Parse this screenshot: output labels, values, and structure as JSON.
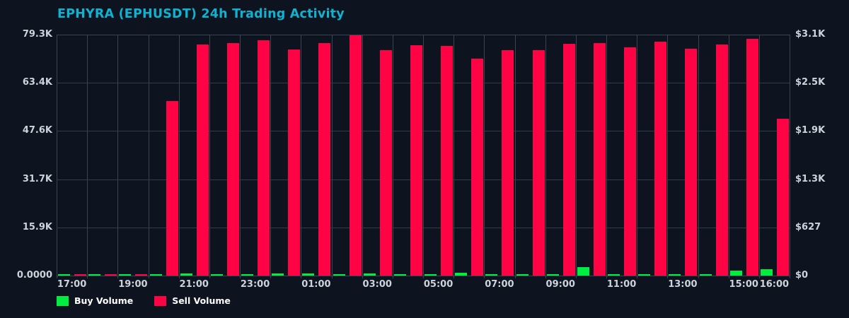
{
  "title": "EPHYRA (EPHUSDT) 24h Trading Activity",
  "colors": {
    "background": "#0d141f",
    "grid": "#3a4450",
    "buy": "#00ee3f",
    "sell": "#ff0345",
    "title": "#10b2d0",
    "axis_text": "#cdd3da"
  },
  "legend": {
    "buy_label": "Buy Volume",
    "sell_label": "Sell Volume"
  },
  "chart_data": {
    "type": "bar",
    "title": "EPHYRA (EPHUSDT) 24h Trading Activity",
    "grid": true,
    "legend_position": "bottom-left",
    "categories": [
      "17:00",
      "18:00",
      "19:00",
      "20:00",
      "21:00",
      "22:00",
      "23:00",
      "00:00",
      "01:00",
      "02:00",
      "03:00",
      "04:00",
      "05:00",
      "06:00",
      "07:00",
      "08:00",
      "09:00",
      "10:00",
      "11:00",
      "12:00",
      "13:00",
      "14:00",
      "15:00",
      "16:00"
    ],
    "series": [
      {
        "name": "Buy Volume",
        "color": "#00ee3f",
        "values": [
          300,
          300,
          320,
          300,
          780,
          150,
          400,
          700,
          620,
          300,
          620,
          300,
          460,
          930,
          160,
          400,
          540,
          2860,
          200,
          250,
          250,
          250,
          1700,
          2160
        ]
      },
      {
        "name": "Sell Volume",
        "color": "#ff0345",
        "values": [
          250,
          200,
          230,
          57400,
          76100,
          76600,
          77500,
          74400,
          76600,
          79100,
          74300,
          75800,
          75700,
          71500,
          74100,
          74300,
          76300,
          76600,
          75100,
          76900,
          74600,
          76100,
          77900,
          51700
        ]
      }
    ],
    "y_left": {
      "ticks": [
        "0.0000",
        "15.9K",
        "31.7K",
        "47.6K",
        "63.4K",
        "79.3K"
      ],
      "max": 79300,
      "min": 0
    },
    "y_right": {
      "ticks": [
        "$0",
        "$627",
        "$1.3K",
        "$1.9K",
        "$2.5K",
        "$3.1K"
      ],
      "max": 3134,
      "min": 0
    },
    "x_tick_labels": [
      "17:00",
      "19:00",
      "21:00",
      "23:00",
      "01:00",
      "03:00",
      "05:00",
      "07:00",
      "09:00",
      "11:00",
      "13:00",
      "15:00",
      "16:00"
    ],
    "x_tick_indices": [
      0,
      2,
      4,
      6,
      8,
      10,
      12,
      14,
      16,
      18,
      20,
      22,
      23
    ]
  }
}
